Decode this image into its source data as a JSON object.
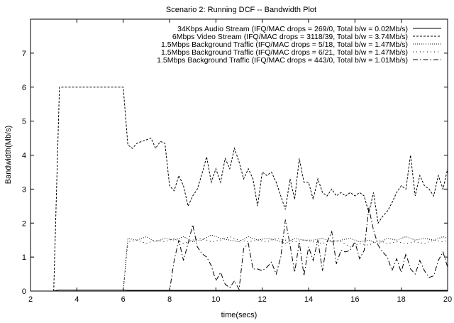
{
  "chart_data": {
    "type": "line",
    "title": "Scenario 2: Running DCF -- Bandwidth Plot",
    "xlabel": "time(secs)",
    "ylabel": "Bandwidth(Mb/s)",
    "xlim": [
      2,
      20
    ],
    "ylim": [
      0,
      8
    ],
    "xticks": [
      2,
      4,
      6,
      8,
      10,
      12,
      14,
      16,
      18,
      20
    ],
    "yticks": [
      0,
      1,
      2,
      3,
      4,
      5,
      6,
      7
    ],
    "grid": false,
    "legend_position": "top-right",
    "series": [
      {
        "name": "34Kbps Audio Stream (IFQ/MAC drops = 269/0, Total b/w = 0.02Mb/s)",
        "style": "solid",
        "points": [
          [
            3,
            0
          ],
          [
            3.2,
            0.03
          ],
          [
            6,
            0.03
          ],
          [
            6.2,
            0.02
          ],
          [
            20,
            0.02
          ]
        ]
      },
      {
        "name": "6Mbps Video Stream (IFQ/MAC drops = 3118/39, Total b/w = 3.74Mb/s)",
        "style": "dashed",
        "points": [
          [
            3,
            0
          ],
          [
            3.25,
            6.0
          ],
          [
            6,
            6.0
          ],
          [
            6.2,
            4.3
          ],
          [
            6.4,
            4.2
          ],
          [
            6.6,
            4.35
          ],
          [
            6.8,
            4.4
          ],
          [
            7,
            4.45
          ],
          [
            7.2,
            4.5
          ],
          [
            7.4,
            4.2
          ],
          [
            7.6,
            4.4
          ],
          [
            7.8,
            4.35
          ],
          [
            8,
            3.1
          ],
          [
            8.2,
            2.95
          ],
          [
            8.4,
            3.4
          ],
          [
            8.6,
            3.1
          ],
          [
            8.8,
            2.5
          ],
          [
            9,
            2.8
          ],
          [
            9.2,
            3.0
          ],
          [
            9.4,
            3.45
          ],
          [
            9.6,
            3.95
          ],
          [
            9.8,
            3.2
          ],
          [
            10,
            3.6
          ],
          [
            10.2,
            3.2
          ],
          [
            10.4,
            3.9
          ],
          [
            10.6,
            3.6
          ],
          [
            10.8,
            4.2
          ],
          [
            11,
            3.8
          ],
          [
            11.2,
            3.3
          ],
          [
            11.4,
            3.6
          ],
          [
            11.6,
            3.3
          ],
          [
            11.8,
            2.5
          ],
          [
            12,
            3.5
          ],
          [
            12.2,
            3.4
          ],
          [
            12.4,
            3.5
          ],
          [
            12.6,
            3.2
          ],
          [
            12.8,
            2.8
          ],
          [
            13,
            2.4
          ],
          [
            13.2,
            3.3
          ],
          [
            13.4,
            2.7
          ],
          [
            13.6,
            3.9
          ],
          [
            13.8,
            3.2
          ],
          [
            14,
            3.2
          ],
          [
            14.2,
            2.7
          ],
          [
            14.4,
            3.3
          ],
          [
            14.6,
            2.9
          ],
          [
            14.8,
            2.8
          ],
          [
            15,
            3.0
          ],
          [
            15.2,
            2.8
          ],
          [
            15.4,
            2.9
          ],
          [
            15.6,
            2.8
          ],
          [
            15.8,
            2.9
          ],
          [
            16,
            2.8
          ],
          [
            16.2,
            2.9
          ],
          [
            16.4,
            2.8
          ],
          [
            16.6,
            2.3
          ],
          [
            16.8,
            2.9
          ],
          [
            17,
            2.0
          ],
          [
            17.2,
            2.2
          ],
          [
            17.4,
            2.35
          ],
          [
            17.6,
            2.6
          ],
          [
            17.8,
            2.9
          ],
          [
            18,
            3.1
          ],
          [
            18.2,
            3.0
          ],
          [
            18.4,
            4.0
          ],
          [
            18.6,
            2.8
          ],
          [
            18.8,
            3.4
          ],
          [
            19,
            3.1
          ],
          [
            19.2,
            3.0
          ],
          [
            19.4,
            2.8
          ],
          [
            19.6,
            3.4
          ],
          [
            19.8,
            3.0
          ],
          [
            20,
            3.6
          ]
        ]
      },
      {
        "name": "1.5Mbps Background Traffic (IFQ/MAC drops = 5/18, Total b/w = 1.47Mb/s)",
        "style": "dotted",
        "points": [
          [
            3,
            0
          ],
          [
            6,
            0
          ],
          [
            6.2,
            1.55
          ],
          [
            6.6,
            1.5
          ],
          [
            7,
            1.6
          ],
          [
            7.4,
            1.45
          ],
          [
            7.8,
            1.55
          ],
          [
            8.2,
            1.5
          ],
          [
            8.6,
            1.6
          ],
          [
            9,
            1.45
          ],
          [
            9.4,
            1.5
          ],
          [
            9.8,
            1.65
          ],
          [
            10.2,
            1.55
          ],
          [
            10.6,
            1.5
          ],
          [
            11,
            1.45
          ],
          [
            11.4,
            1.6
          ],
          [
            11.8,
            1.5
          ],
          [
            12.2,
            1.55
          ],
          [
            12.6,
            1.5
          ],
          [
            13,
            1.4
          ],
          [
            13.4,
            1.55
          ],
          [
            13.8,
            1.5
          ],
          [
            14.2,
            1.5
          ],
          [
            14.6,
            1.55
          ],
          [
            15,
            1.45
          ],
          [
            15.4,
            1.5
          ],
          [
            15.8,
            1.55
          ],
          [
            16.2,
            1.45
          ],
          [
            16.6,
            1.5
          ],
          [
            17,
            1.4
          ],
          [
            17.4,
            1.55
          ],
          [
            17.8,
            1.5
          ],
          [
            18.2,
            1.6
          ],
          [
            18.6,
            1.5
          ],
          [
            19,
            1.55
          ],
          [
            19.4,
            1.5
          ],
          [
            19.8,
            1.6
          ],
          [
            20,
            1.55
          ]
        ]
      },
      {
        "name": "1.5Mbps Background Traffic (IFQ/MAC drops = 6/21, Total b/w = 1.47Mb/s)",
        "style": "dotted-sparse",
        "points": [
          [
            3,
            0
          ],
          [
            6,
            0
          ],
          [
            6.2,
            1.45
          ],
          [
            6.6,
            1.5
          ],
          [
            7,
            1.4
          ],
          [
            7.4,
            1.5
          ],
          [
            7.8,
            1.45
          ],
          [
            8.2,
            1.55
          ],
          [
            8.6,
            1.4
          ],
          [
            9,
            1.5
          ],
          [
            9.4,
            1.55
          ],
          [
            9.8,
            1.45
          ],
          [
            10.2,
            1.5
          ],
          [
            10.6,
            1.6
          ],
          [
            11,
            1.5
          ],
          [
            11.4,
            1.45
          ],
          [
            11.8,
            1.5
          ],
          [
            12.2,
            1.45
          ],
          [
            12.6,
            1.55
          ],
          [
            13,
            1.5
          ],
          [
            13.4,
            1.45
          ],
          [
            13.8,
            1.5
          ],
          [
            14.2,
            1.45
          ],
          [
            14.6,
            1.4
          ],
          [
            15,
            1.5
          ],
          [
            15.4,
            1.45
          ],
          [
            15.8,
            1.3
          ],
          [
            16.2,
            1.4
          ],
          [
            16.6,
            1.35
          ],
          [
            17,
            1.5
          ],
          [
            17.4,
            1.4
          ],
          [
            17.8,
            1.45
          ],
          [
            18.2,
            1.4
          ],
          [
            18.6,
            1.45
          ],
          [
            19,
            1.4
          ],
          [
            19.4,
            1.5
          ],
          [
            19.8,
            1.45
          ],
          [
            20,
            1.5
          ]
        ]
      },
      {
        "name": "1.5Mbps Background Traffic (IFQ/MAC drops = 443/0, Total b/w = 1.01Mb/s)",
        "style": "dash-dot",
        "points": [
          [
            3,
            0
          ],
          [
            8,
            0
          ],
          [
            8.2,
            0.9
          ],
          [
            8.4,
            1.5
          ],
          [
            8.6,
            0.9
          ],
          [
            8.8,
            1.4
          ],
          [
            9,
            1.95
          ],
          [
            9.2,
            1.3
          ],
          [
            9.4,
            1.1
          ],
          [
            9.6,
            1.0
          ],
          [
            9.8,
            0.75
          ],
          [
            10,
            0.3
          ],
          [
            10.2,
            0.55
          ],
          [
            10.4,
            0.2
          ],
          [
            10.6,
            0.1
          ],
          [
            10.8,
            0.3
          ],
          [
            11,
            0.05
          ],
          [
            11.2,
            1.25
          ],
          [
            11.4,
            1.4
          ],
          [
            11.6,
            0.65
          ],
          [
            11.8,
            0.65
          ],
          [
            12,
            0.6
          ],
          [
            12.2,
            0.7
          ],
          [
            12.4,
            0.85
          ],
          [
            12.6,
            0.5
          ],
          [
            12.8,
            1.0
          ],
          [
            13,
            2.1
          ],
          [
            13.2,
            1.35
          ],
          [
            13.4,
            0.55
          ],
          [
            13.6,
            1.45
          ],
          [
            13.8,
            0.45
          ],
          [
            14,
            1.3
          ],
          [
            14.2,
            0.9
          ],
          [
            14.4,
            1.5
          ],
          [
            14.6,
            0.6
          ],
          [
            14.8,
            1.45
          ],
          [
            15,
            1.75
          ],
          [
            15.2,
            0.8
          ],
          [
            15.4,
            1.2
          ],
          [
            15.6,
            1.15
          ],
          [
            15.8,
            1.2
          ],
          [
            16,
            1.45
          ],
          [
            16.2,
            0.95
          ],
          [
            16.4,
            1.2
          ],
          [
            16.6,
            2.45
          ],
          [
            16.8,
            1.8
          ],
          [
            17,
            1.35
          ],
          [
            17.2,
            1.15
          ],
          [
            17.4,
            1.0
          ],
          [
            17.6,
            0.6
          ],
          [
            17.8,
            0.95
          ],
          [
            18,
            0.55
          ],
          [
            18.2,
            1.1
          ],
          [
            18.4,
            0.65
          ],
          [
            18.6,
            0.5
          ],
          [
            18.8,
            0.9
          ],
          [
            19,
            0.6
          ],
          [
            19.2,
            0.4
          ],
          [
            19.4,
            0.45
          ],
          [
            19.6,
            0.9
          ],
          [
            19.8,
            1.15
          ],
          [
            20,
            0.7
          ]
        ]
      }
    ]
  }
}
